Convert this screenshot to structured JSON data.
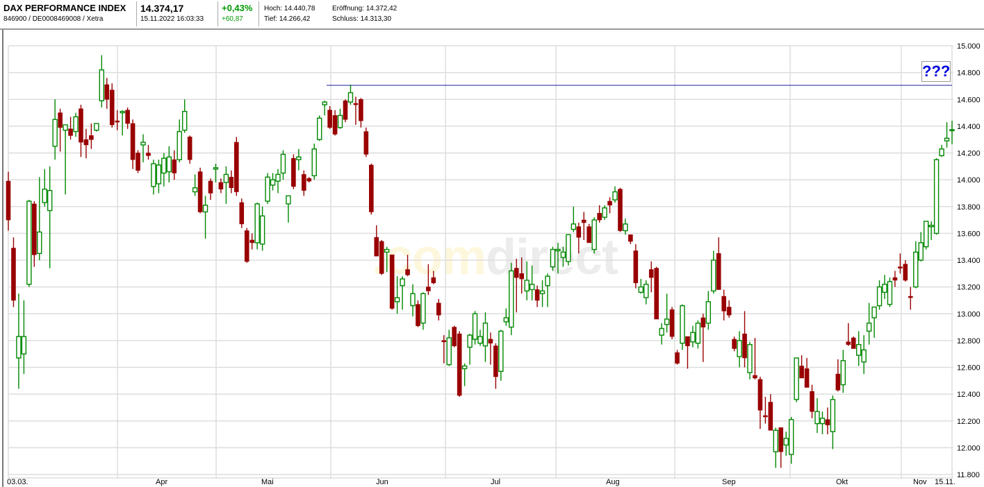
{
  "header": {
    "title": "DAX PERFORMANCE INDEX",
    "ids": "846900 / DE0008469008 / Xetra",
    "price": "14.374,17",
    "datetime": "15.11.2022 16:03:33",
    "change_pct": "+0,43%",
    "change_abs": "+60,87",
    "high_label": "Hoch: 14.440,78",
    "low_label": "Tief: 14.266,42",
    "open_label": "Eröffnung: 14.372,42",
    "close_label": "Schluss: 14.313,30"
  },
  "watermark": {
    "part1": ".com",
    "part2": "direct"
  },
  "annotation": {
    "label": "???"
  },
  "colors": {
    "up": "#008800",
    "down": "#990000",
    "grid": "#dddddd",
    "hline": "#1a1aa0",
    "positive": "#009900"
  },
  "chart_data": {
    "type": "candlestick",
    "ylim": [
      11800,
      15000
    ],
    "yticks": [
      "15.000",
      "14.800",
      "14.600",
      "14.400",
      "14.200",
      "14.000",
      "13.800",
      "13.600",
      "13.400",
      "13.200",
      "13.000",
      "12.800",
      "12.600",
      "12.400",
      "12.200",
      "12.000",
      "11.800"
    ],
    "ytick_values": [
      15000,
      14800,
      14600,
      14400,
      14200,
      14000,
      13800,
      13600,
      13400,
      13200,
      13000,
      12800,
      12600,
      12400,
      12200,
      12000,
      11800
    ],
    "xlabels": [
      "03.03.",
      "Apr",
      "Mai",
      "Jun",
      "Jul",
      "Aug",
      "Sep",
      "Okt",
      "Nov",
      "15.11."
    ],
    "horizontal_line": 14705,
    "grid": true,
    "ohlc": [
      [
        13990,
        14060,
        13620,
        13700
      ],
      [
        13490,
        13570,
        13050,
        13100
      ],
      [
        12670,
        13150,
        12440,
        12830
      ],
      [
        12700,
        13100,
        12550,
        12830
      ],
      [
        13220,
        13850,
        13200,
        13840
      ],
      [
        13820,
        13840,
        13350,
        13440
      ],
      [
        13450,
        14020,
        13400,
        13610
      ],
      [
        13830,
        14080,
        13800,
        13930
      ],
      [
        13770,
        14100,
        13340,
        13920
      ],
      [
        14250,
        14600,
        14150,
        14450
      ],
      [
        14500,
        14530,
        14210,
        14390
      ],
      [
        14370,
        14410,
        13890,
        14410
      ],
      [
        14380,
        14470,
        14300,
        14330
      ],
      [
        14360,
        14500,
        14320,
        14470
      ],
      [
        14530,
        14560,
        14170,
        14280
      ],
      [
        14300,
        14380,
        14160,
        14260
      ],
      [
        14330,
        14420,
        14230,
        14300
      ],
      [
        14370,
        14420,
        14360,
        14420
      ],
      [
        14590,
        14930,
        14540,
        14820
      ],
      [
        14710,
        14760,
        14530,
        14600
      ],
      [
        14670,
        14720,
        14390,
        14410
      ],
      [
        14440,
        14520,
        14370,
        14430
      ],
      [
        14500,
        14520,
        14330,
        14510
      ],
      [
        14520,
        14540,
        14380,
        14420
      ],
      [
        14420,
        14450,
        14080,
        14150
      ],
      [
        14200,
        14220,
        14050,
        14070
      ],
      [
        14260,
        14340,
        14130,
        14280
      ],
      [
        14200,
        14260,
        14150,
        14180
      ],
      [
        13950,
        14150,
        13890,
        14120
      ],
      [
        13970,
        14150,
        13900,
        14110
      ],
      [
        14050,
        14200,
        13950,
        14160
      ],
      [
        14060,
        14250,
        13980,
        14170
      ],
      [
        14150,
        14220,
        14000,
        14050
      ],
      [
        14150,
        14450,
        14130,
        14360
      ],
      [
        14370,
        14600,
        14350,
        14510
      ],
      [
        14320,
        14330,
        14120,
        14150
      ],
      [
        13910,
        14040,
        13880,
        13940
      ],
      [
        14060,
        14090,
        13750,
        13760
      ],
      [
        13760,
        13880,
        13560,
        13810
      ],
      [
        13990,
        14010,
        13850,
        13900
      ],
      [
        14080,
        14120,
        13980,
        14090
      ],
      [
        13980,
        14010,
        13900,
        13930
      ],
      [
        13980,
        14100,
        13820,
        14040
      ],
      [
        14020,
        14070,
        13900,
        13940
      ],
      [
        14280,
        14320,
        13880,
        13910
      ],
      [
        13830,
        13860,
        13640,
        13670
      ],
      [
        13620,
        13640,
        13380,
        13390
      ],
      [
        13550,
        13600,
        13480,
        13530
      ],
      [
        13530,
        13830,
        13480,
        13820
      ],
      [
        13520,
        13800,
        13470,
        13730
      ],
      [
        13840,
        14050,
        13820,
        14020
      ],
      [
        13960,
        14050,
        13920,
        14000
      ],
      [
        13990,
        14080,
        13900,
        14040
      ],
      [
        14050,
        14220,
        14000,
        14190
      ],
      [
        13820,
        13880,
        13680,
        13880
      ],
      [
        14160,
        14190,
        13930,
        13950
      ],
      [
        14150,
        14230,
        14070,
        14170
      ],
      [
        14040,
        14070,
        13880,
        13920
      ],
      [
        14010,
        14020,
        13980,
        13990
      ],
      [
        14030,
        14270,
        14000,
        14230
      ],
      [
        14300,
        14480,
        14290,
        14460
      ],
      [
        14560,
        14590,
        14480,
        14580
      ],
      [
        14520,
        14550,
        14380,
        14390
      ],
      [
        14480,
        14520,
        14330,
        14340
      ],
      [
        14390,
        14530,
        14380,
        14480
      ],
      [
        14590,
        14600,
        14430,
        14450
      ],
      [
        14580,
        14710,
        14560,
        14650
      ],
      [
        14570,
        14620,
        14410,
        14560
      ],
      [
        14600,
        14610,
        14390,
        14440
      ],
      [
        14360,
        14390,
        14170,
        14190
      ],
      [
        14110,
        14120,
        13740,
        13760
      ],
      [
        13570,
        13660,
        13430,
        13430
      ],
      [
        13540,
        13550,
        13290,
        13300
      ],
      [
        13460,
        13500,
        13310,
        13480
      ],
      [
        13440,
        13440,
        13030,
        13040
      ],
      [
        13090,
        13280,
        13000,
        13120
      ],
      [
        13210,
        13280,
        13030,
        13260
      ],
      [
        13330,
        13440,
        13280,
        13290
      ],
      [
        13060,
        13220,
        12980,
        13150
      ],
      [
        13070,
        13100,
        12900,
        12910
      ],
      [
        12930,
        13160,
        12880,
        13150
      ],
      [
        13200,
        13370,
        13140,
        13170
      ],
      [
        13270,
        13320,
        13220,
        13230
      ],
      [
        13080,
        13110,
        12950,
        12990
      ],
      [
        12800,
        12840,
        12630,
        12790
      ],
      [
        12620,
        12880,
        12610,
        12820
      ],
      [
        12900,
        12910,
        12750,
        12760
      ],
      [
        12850,
        12870,
        12380,
        12390
      ],
      [
        12590,
        12630,
        12460,
        12610
      ],
      [
        12750,
        12850,
        12620,
        12840
      ],
      [
        12810,
        13020,
        12770,
        13000
      ],
      [
        12780,
        12880,
        12760,
        12830
      ],
      [
        12760,
        13010,
        12640,
        12930
      ],
      [
        12810,
        12860,
        12620,
        12780
      ],
      [
        12760,
        12780,
        12440,
        12530
      ],
      [
        12570,
        12880,
        12500,
        12870
      ],
      [
        12940,
        13040,
        12910,
        12970
      ],
      [
        12900,
        13380,
        12840,
        13320
      ],
      [
        13340,
        13410,
        13010,
        13270
      ],
      [
        13300,
        13420,
        13150,
        13260
      ],
      [
        13170,
        13390,
        13100,
        13250
      ],
      [
        13180,
        13360,
        13100,
        13220
      ],
      [
        13180,
        13210,
        13050,
        13100
      ],
      [
        13150,
        13250,
        13050,
        13170
      ],
      [
        13210,
        13300,
        13050,
        13280
      ],
      [
        13350,
        13500,
        13320,
        13480
      ],
      [
        13470,
        13530,
        13300,
        13480
      ],
      [
        13420,
        13500,
        13350,
        13460
      ],
      [
        13390,
        13590,
        13360,
        13590
      ],
      [
        13630,
        13800,
        13610,
        13670
      ],
      [
        13650,
        13680,
        13450,
        13570
      ],
      [
        13700,
        13760,
        13550,
        13680
      ],
      [
        13650,
        13670,
        13530,
        13530
      ],
      [
        13480,
        13720,
        13450,
        13700
      ],
      [
        13750,
        13810,
        13680,
        13700
      ],
      [
        13720,
        13810,
        13700,
        13790
      ],
      [
        13840,
        13870,
        13750,
        13810
      ],
      [
        13850,
        13950,
        13830,
        13910
      ],
      [
        13930,
        13940,
        13610,
        13620
      ],
      [
        13620,
        13710,
        13590,
        13670
      ],
      [
        13590,
        13590,
        13520,
        13540
      ],
      [
        13470,
        13520,
        13190,
        13230
      ],
      [
        13160,
        13260,
        13150,
        13200
      ],
      [
        13120,
        13250,
        13070,
        13220
      ],
      [
        13330,
        13390,
        13160,
        13270
      ],
      [
        13340,
        13350,
        12960,
        12960
      ],
      [
        12840,
        12930,
        12770,
        12890
      ],
      [
        12920,
        13150,
        12860,
        12960
      ],
      [
        13030,
        13050,
        12810,
        12830
      ],
      [
        12710,
        12730,
        12620,
        12630
      ],
      [
        12780,
        13070,
        12730,
        13060
      ],
      [
        12830,
        12830,
        12590,
        12760
      ],
      [
        12790,
        12910,
        12750,
        12860
      ],
      [
        12780,
        12950,
        12740,
        12930
      ],
      [
        12970,
        13000,
        12640,
        12900
      ],
      [
        12930,
        13170,
        12880,
        13090
      ],
      [
        13170,
        13470,
        13150,
        13400
      ],
      [
        13450,
        13570,
        13180,
        13180
      ],
      [
        13130,
        13180,
        12950,
        13020
      ],
      [
        13050,
        13100,
        12970,
        12990
      ],
      [
        12810,
        12830,
        12720,
        12740
      ],
      [
        12680,
        12870,
        12600,
        12800
      ],
      [
        12850,
        13020,
        12600,
        12670
      ],
      [
        12560,
        12790,
        12510,
        12770
      ],
      [
        12540,
        12820,
        12510,
        12520
      ],
      [
        12510,
        12530,
        12140,
        12280
      ],
      [
        12240,
        12380,
        12180,
        12230
      ],
      [
        12340,
        12400,
        12130,
        12130
      ],
      [
        11970,
        12150,
        11850,
        12130
      ],
      [
        12150,
        12150,
        11850,
        11970
      ],
      [
        12020,
        12120,
        11940,
        12070
      ],
      [
        11950,
        12230,
        11880,
        12210
      ],
      [
        12360,
        12670,
        12340,
        12670
      ],
      [
        12610,
        12690,
        12530,
        12520
      ],
      [
        12590,
        12670,
        12460,
        12450
      ],
      [
        12420,
        12470,
        12220,
        12270
      ],
      [
        12180,
        12370,
        12110,
        12270
      ],
      [
        12180,
        12270,
        12100,
        12220
      ],
      [
        12210,
        12300,
        12100,
        12170
      ],
      [
        12120,
        12390,
        11990,
        12360
      ],
      [
        12550,
        12660,
        12420,
        12430
      ],
      [
        12470,
        12730,
        12410,
        12650
      ],
      [
        12790,
        12930,
        12760,
        12770
      ],
      [
        12820,
        12830,
        12740,
        12740
      ],
      [
        12690,
        12870,
        12610,
        12770
      ],
      [
        12640,
        12840,
        12550,
        12730
      ],
      [
        12870,
        13080,
        12770,
        12930
      ],
      [
        12970,
        13050,
        12820,
        13050
      ],
      [
        13060,
        13250,
        13030,
        13200
      ],
      [
        13160,
        13290,
        13110,
        13220
      ],
      [
        13070,
        13270,
        13050,
        13240
      ],
      [
        13270,
        13320,
        13200,
        13250
      ],
      [
        13350,
        13450,
        13300,
        13340
      ],
      [
        13370,
        13400,
        13240,
        13250
      ],
      [
        13130,
        13200,
        13030,
        13120
      ],
      [
        13200,
        13540,
        13190,
        13460
      ],
      [
        13400,
        13610,
        13390,
        13530
      ],
      [
        13500,
        13690,
        13480,
        13690
      ],
      [
        13650,
        13690,
        13550,
        13660
      ],
      [
        13600,
        14160,
        13590,
        14150
      ],
      [
        14180,
        14260,
        14170,
        14230
      ],
      [
        14290,
        14430,
        14240,
        14310
      ],
      [
        14372,
        14441,
        14266,
        14374
      ]
    ]
  }
}
